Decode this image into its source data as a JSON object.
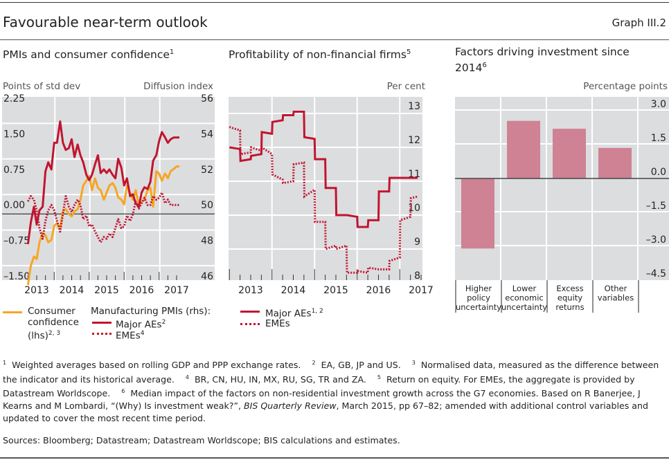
{
  "header": {
    "title": "Favourable near-term outlook",
    "graph_id": "Graph III.2"
  },
  "chart_data": [
    {
      "type": "line",
      "title": "PMIs and consumer confidence",
      "title_footnote": "1",
      "ylabel_left": "Points of std dev",
      "ylabel_right": "Diffusion index",
      "ylim_left": [
        -1.5,
        2.25
      ],
      "ylim_right": [
        46,
        56
      ],
      "yticks_left": [
        "2.25",
        "1.50",
        "0.75",
        "0.00",
        "–0.75",
        "–1.50"
      ],
      "yticks_right": [
        "56",
        "54",
        "52",
        "50",
        "48",
        "46"
      ],
      "xticks": [
        "2013",
        "2014",
        "2015",
        "2016",
        "2017"
      ],
      "grid": true,
      "x_start": 2012.75,
      "x_end": 2017.25,
      "series": [
        {
          "name": "Consumer confidence (lhs)",
          "footnotes": "2, 3",
          "axis": "left",
          "style": "solid",
          "color": "#F5A623",
          "x": [
            2012.75,
            2012.83,
            2012.92,
            2013.0,
            2013.08,
            2013.17,
            2013.25,
            2013.33,
            2013.42,
            2013.5,
            2013.58,
            2013.67,
            2013.75,
            2013.83,
            2013.92,
            2014.0,
            2014.08,
            2014.17,
            2014.25,
            2014.33,
            2014.42,
            2014.5,
            2014.58,
            2014.67,
            2014.75,
            2014.83,
            2014.92,
            2015.0,
            2015.08,
            2015.17,
            2015.25,
            2015.33,
            2015.42,
            2015.5,
            2015.58,
            2015.67,
            2015.75,
            2015.83,
            2015.92,
            2016.0,
            2016.08,
            2016.17,
            2016.25,
            2016.33,
            2016.42,
            2016.5,
            2016.58,
            2016.67,
            2016.75,
            2016.83,
            2016.92,
            2017.0,
            2017.08
          ],
          "values": [
            -1.5,
            -1.1,
            -0.9,
            -0.95,
            -0.6,
            -0.4,
            -0.45,
            -0.6,
            -0.55,
            -0.25,
            -0.2,
            -0.3,
            0.05,
            0.1,
            0.0,
            -0.05,
            0.05,
            0.1,
            0.3,
            0.6,
            0.7,
            0.8,
            0.5,
            0.75,
            0.55,
            0.5,
            0.3,
            0.45,
            0.6,
            0.65,
            0.55,
            0.35,
            0.3,
            0.2,
            0.6,
            0.45,
            0.3,
            0.5,
            0.2,
            0.25,
            0.3,
            0.5,
            0.55,
            0.15,
            0.9,
            0.85,
            0.7,
            0.85,
            0.75,
            0.9,
            0.95,
            1.0,
            1.0
          ]
        },
        {
          "name": "Manufacturing PMIs (rhs): Major AEs",
          "footnotes": "2",
          "axis": "right",
          "style": "solid",
          "color": "#C0152F",
          "x": [
            2012.75,
            2012.83,
            2012.92,
            2013.0,
            2013.08,
            2013.17,
            2013.25,
            2013.33,
            2013.42,
            2013.5,
            2013.58,
            2013.67,
            2013.75,
            2013.83,
            2013.92,
            2014.0,
            2014.08,
            2014.17,
            2014.25,
            2014.33,
            2014.42,
            2014.5,
            2014.58,
            2014.67,
            2014.75,
            2014.83,
            2014.92,
            2015.0,
            2015.08,
            2015.17,
            2015.25,
            2015.33,
            2015.42,
            2015.5,
            2015.58,
            2015.67,
            2015.75,
            2015.83,
            2015.92,
            2016.0,
            2016.08,
            2016.17,
            2016.25,
            2016.33,
            2016.42,
            2016.5,
            2016.58,
            2016.67,
            2016.75,
            2016.83,
            2016.92,
            2017.0,
            2017.08
          ],
          "values": [
            48.3,
            49.5,
            50.4,
            49.4,
            50.2,
            50.4,
            52.4,
            52.9,
            52.5,
            54.0,
            54.0,
            55.2,
            54.0,
            53.6,
            53.7,
            54.2,
            53.2,
            53.9,
            53.3,
            52.9,
            52.2,
            51.9,
            52.2,
            52.8,
            53.3,
            52.3,
            52.5,
            52.3,
            52.5,
            52.2,
            52.0,
            53.1,
            52.6,
            51.6,
            52.0,
            51.0,
            51.1,
            50.6,
            50.4,
            51.2,
            51.5,
            51.4,
            51.8,
            53.0,
            53.3,
            54.1,
            54.6,
            54.3,
            54.0,
            54.2,
            54.3,
            54.3,
            54.3
          ],
          "note": "values approximate, read from gridlines"
        },
        {
          "name": "Manufacturing PMIs (rhs): EMEs",
          "footnotes": "4",
          "axis": "right",
          "style": "dotted",
          "color": "#C0152F",
          "x": [
            2012.75,
            2012.83,
            2012.92,
            2013.0,
            2013.08,
            2013.17,
            2013.25,
            2013.33,
            2013.42,
            2013.5,
            2013.58,
            2013.67,
            2013.75,
            2013.83,
            2013.92,
            2014.0,
            2014.08,
            2014.17,
            2014.25,
            2014.33,
            2014.42,
            2014.5,
            2014.58,
            2014.67,
            2014.75,
            2014.83,
            2014.92,
            2015.0,
            2015.08,
            2015.17,
            2015.25,
            2015.33,
            2015.42,
            2015.5,
            2015.58,
            2015.67,
            2015.75,
            2015.83,
            2015.92,
            2016.0,
            2016.08,
            2016.17,
            2016.25,
            2016.33,
            2016.42,
            2016.5,
            2016.58,
            2016.67,
            2016.75,
            2016.83,
            2016.92,
            2017.0,
            2017.08
          ],
          "values": [
            50.7,
            51.0,
            50.8,
            50.2,
            49.2,
            48.6,
            49.6,
            50.2,
            50.5,
            50.2,
            49.6,
            49.0,
            50.0,
            51.0,
            50.4,
            50.1,
            50.5,
            50.8,
            50.5,
            49.7,
            49.9,
            49.3,
            49.4,
            49.0,
            48.7,
            48.4,
            48.7,
            48.6,
            48.9,
            48.7,
            49.2,
            49.7,
            49.2,
            49.3,
            49.9,
            49.6,
            50.0,
            50.7,
            50.3,
            50.6,
            50.9,
            50.5,
            50.5,
            51.0,
            50.8,
            50.9,
            51.2,
            50.6,
            50.8,
            50.5,
            50.5,
            50.5,
            50.5
          ],
          "note": "values approximate, read from gridlines"
        }
      ]
    },
    {
      "type": "line",
      "title": "Profitability of non-financial firms",
      "title_footnote": "5",
      "ylabel_right": "Per cent",
      "ylim": [
        8,
        13
      ],
      "yticks": [
        "13",
        "12",
        "11",
        "10",
        "9",
        "8"
      ],
      "xticks": [
        "2013",
        "2014",
        "2015",
        "2016",
        "2017"
      ],
      "grid": true,
      "x_start": 2012.5,
      "x_end": 2017.5,
      "series": [
        {
          "name": "Major AEs",
          "footnotes": "1, 2",
          "style": "solid",
          "color": "#C0152F",
          "x": [
            2012.5,
            2012.75,
            2012.76,
            2013.0,
            2013.01,
            2013.25,
            2013.26,
            2013.5,
            2013.51,
            2013.75,
            2013.76,
            2014.0,
            2014.01,
            2014.25,
            2014.26,
            2014.5,
            2014.51,
            2014.75,
            2014.76,
            2015.0,
            2015.01,
            2015.25,
            2015.26,
            2015.5,
            2015.51,
            2015.75,
            2015.76,
            2016.0,
            2016.01,
            2016.25,
            2016.26,
            2016.5,
            2016.51,
            2016.75,
            2016.76,
            2016.92
          ],
          "values": [
            12.0,
            11.95,
            11.6,
            11.65,
            11.75,
            11.8,
            12.45,
            12.4,
            12.75,
            12.8,
            12.95,
            12.95,
            13.05,
            13.05,
            12.3,
            12.25,
            11.65,
            11.65,
            10.8,
            10.8,
            10.0,
            10.0,
            10.0,
            9.95,
            9.65,
            9.65,
            9.85,
            9.85,
            10.7,
            10.7,
            11.1,
            11.1,
            11.1,
            11.1,
            11.1,
            11.1
          ],
          "note": "step series, values approximate"
        },
        {
          "name": "EMEs",
          "style": "dotted",
          "color": "#C0152F",
          "x": [
            2012.5,
            2012.75,
            2012.76,
            2013.0,
            2013.01,
            2013.25,
            2013.26,
            2013.5,
            2013.51,
            2013.75,
            2013.76,
            2014.0,
            2014.01,
            2014.25,
            2014.26,
            2014.5,
            2014.51,
            2014.75,
            2014.76,
            2015.0,
            2015.01,
            2015.25,
            2015.26,
            2015.5,
            2015.51,
            2015.75,
            2015.76,
            2016.0,
            2016.01,
            2016.25,
            2016.26,
            2016.5,
            2016.51,
            2016.75,
            2016.76,
            2016.92
          ],
          "values": [
            12.6,
            12.5,
            11.8,
            11.85,
            12.0,
            11.9,
            12.0,
            11.8,
            11.2,
            11.05,
            10.95,
            11.0,
            11.5,
            11.55,
            10.55,
            10.75,
            9.8,
            9.8,
            9.0,
            9.1,
            9.0,
            9.1,
            8.3,
            8.3,
            8.35,
            8.3,
            8.45,
            8.4,
            8.4,
            8.4,
            8.65,
            8.75,
            9.85,
            9.95,
            10.5,
            10.55
          ],
          "note": "step series, values approximate"
        }
      ]
    },
    {
      "type": "bar",
      "title": "Factors driving investment since 2014",
      "title_footnote": "6",
      "ylabel_right": "Percentage points",
      "ylim": [
        -4.5,
        3.75
      ],
      "yticks": [
        "3.0",
        "1.5",
        "0.0",
        "–1.5",
        "–3.0",
        "–4.5"
      ],
      "grid": true,
      "categories": [
        "Higher policy uncertainty",
        "Lower economic uncertainty",
        "Excess equity returns",
        "Other variables"
      ],
      "category_lines": [
        [
          "Higher",
          "policy",
          "uncertainty"
        ],
        [
          "Lower",
          "economic",
          "uncertainty"
        ],
        [
          "Excess",
          "equity",
          "returns"
        ],
        [
          "Other",
          "variables",
          ""
        ]
      ],
      "values": [
        -3.1,
        2.55,
        2.2,
        1.35
      ],
      "color": "#CE8294"
    }
  ],
  "legend1": {
    "consumer_line1": "Consumer",
    "consumer_line2": "confidence",
    "consumer_line3": "(lhs)",
    "consumer_sup": "2, 3",
    "pmi_header": "Manufacturing PMIs (rhs):",
    "major_aes": "Major AEs",
    "major_aes_sup": "2",
    "emes": "EMEs",
    "emes_sup": "4"
  },
  "legend2": {
    "major_aes": "Major AEs",
    "major_aes_sup": "1, 2",
    "emes": "EMEs"
  },
  "footnotes": {
    "n1": "1",
    "t1": "Weighted averages based on rolling GDP and PPP exchange rates.",
    "n2": "2",
    "t2": "EA, GB, JP and US.",
    "n3": "3",
    "t3": "Normalised data, measured as the difference between the indicator and its historical average.",
    "n4": "4",
    "t4": "BR, CN, HU, IN, MX, RU, SG, TR and ZA.",
    "n5": "5",
    "t5": "Return on equity. For EMEs, the aggregate is provided by Datastream Worldscope.",
    "n6": "6",
    "t6a": "Median impact of the factors on non-residential investment growth across the G7 economies. Based on R Banerjee, J Kearns and M Lombardi, “(Why) Is investment weak?”,",
    "t6_italic": "BIS Quarterly Review",
    "t6b": ", March 2015, pp 67–82; amended with additional control variables and updated to cover the most recent time period.",
    "sources": "Sources: Bloomberg; Datastream; Datastream Worldscope; BIS calculations and estimates."
  }
}
